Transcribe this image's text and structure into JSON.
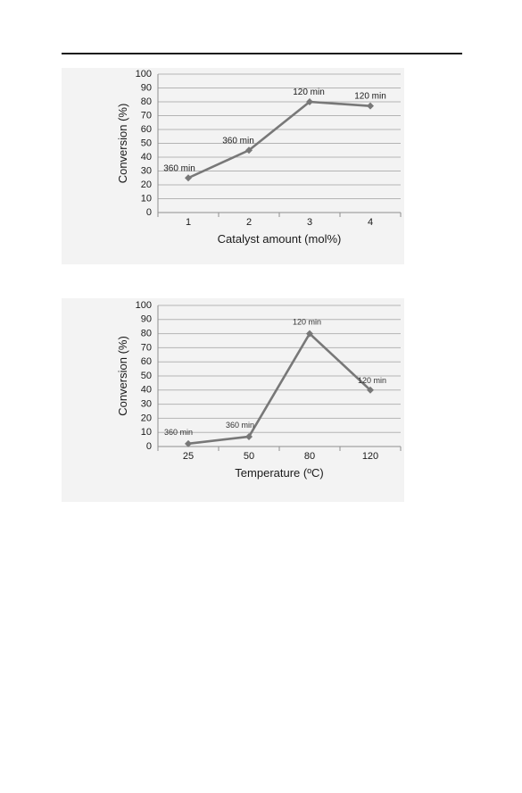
{
  "chart_data": [
    {
      "type": "line",
      "title": "",
      "xlabel": "Catalyst amount (mol%)",
      "ylabel": "Conversion (%)",
      "categories": [
        "1",
        "2",
        "3",
        "4"
      ],
      "values": [
        25,
        45,
        80,
        77
      ],
      "data_labels": [
        "360 min",
        "360 min",
        "120 min",
        "120 min"
      ],
      "yticks": [
        "0",
        "10",
        "20",
        "30",
        "40",
        "50",
        "60",
        "70",
        "80",
        "90",
        "100"
      ],
      "ylim": [
        0,
        100
      ],
      "grid": true,
      "legend": "none",
      "line_color": "#787878",
      "marker": "diamond"
    },
    {
      "type": "line",
      "title": "",
      "xlabel": "Temperature (ºC)",
      "ylabel": "Conversion (%)",
      "categories": [
        "25",
        "50",
        "80",
        "120"
      ],
      "values": [
        2,
        7,
        80,
        40
      ],
      "data_labels": [
        "360 min",
        "360 min",
        "120 min",
        "120 min"
      ],
      "yticks": [
        "0",
        "10",
        "20",
        "30",
        "40",
        "50",
        "60",
        "70",
        "80",
        "90",
        "100"
      ],
      "ylim": [
        0,
        100
      ],
      "grid": true,
      "legend": "none",
      "line_color": "#787878",
      "marker": "diamond"
    }
  ]
}
